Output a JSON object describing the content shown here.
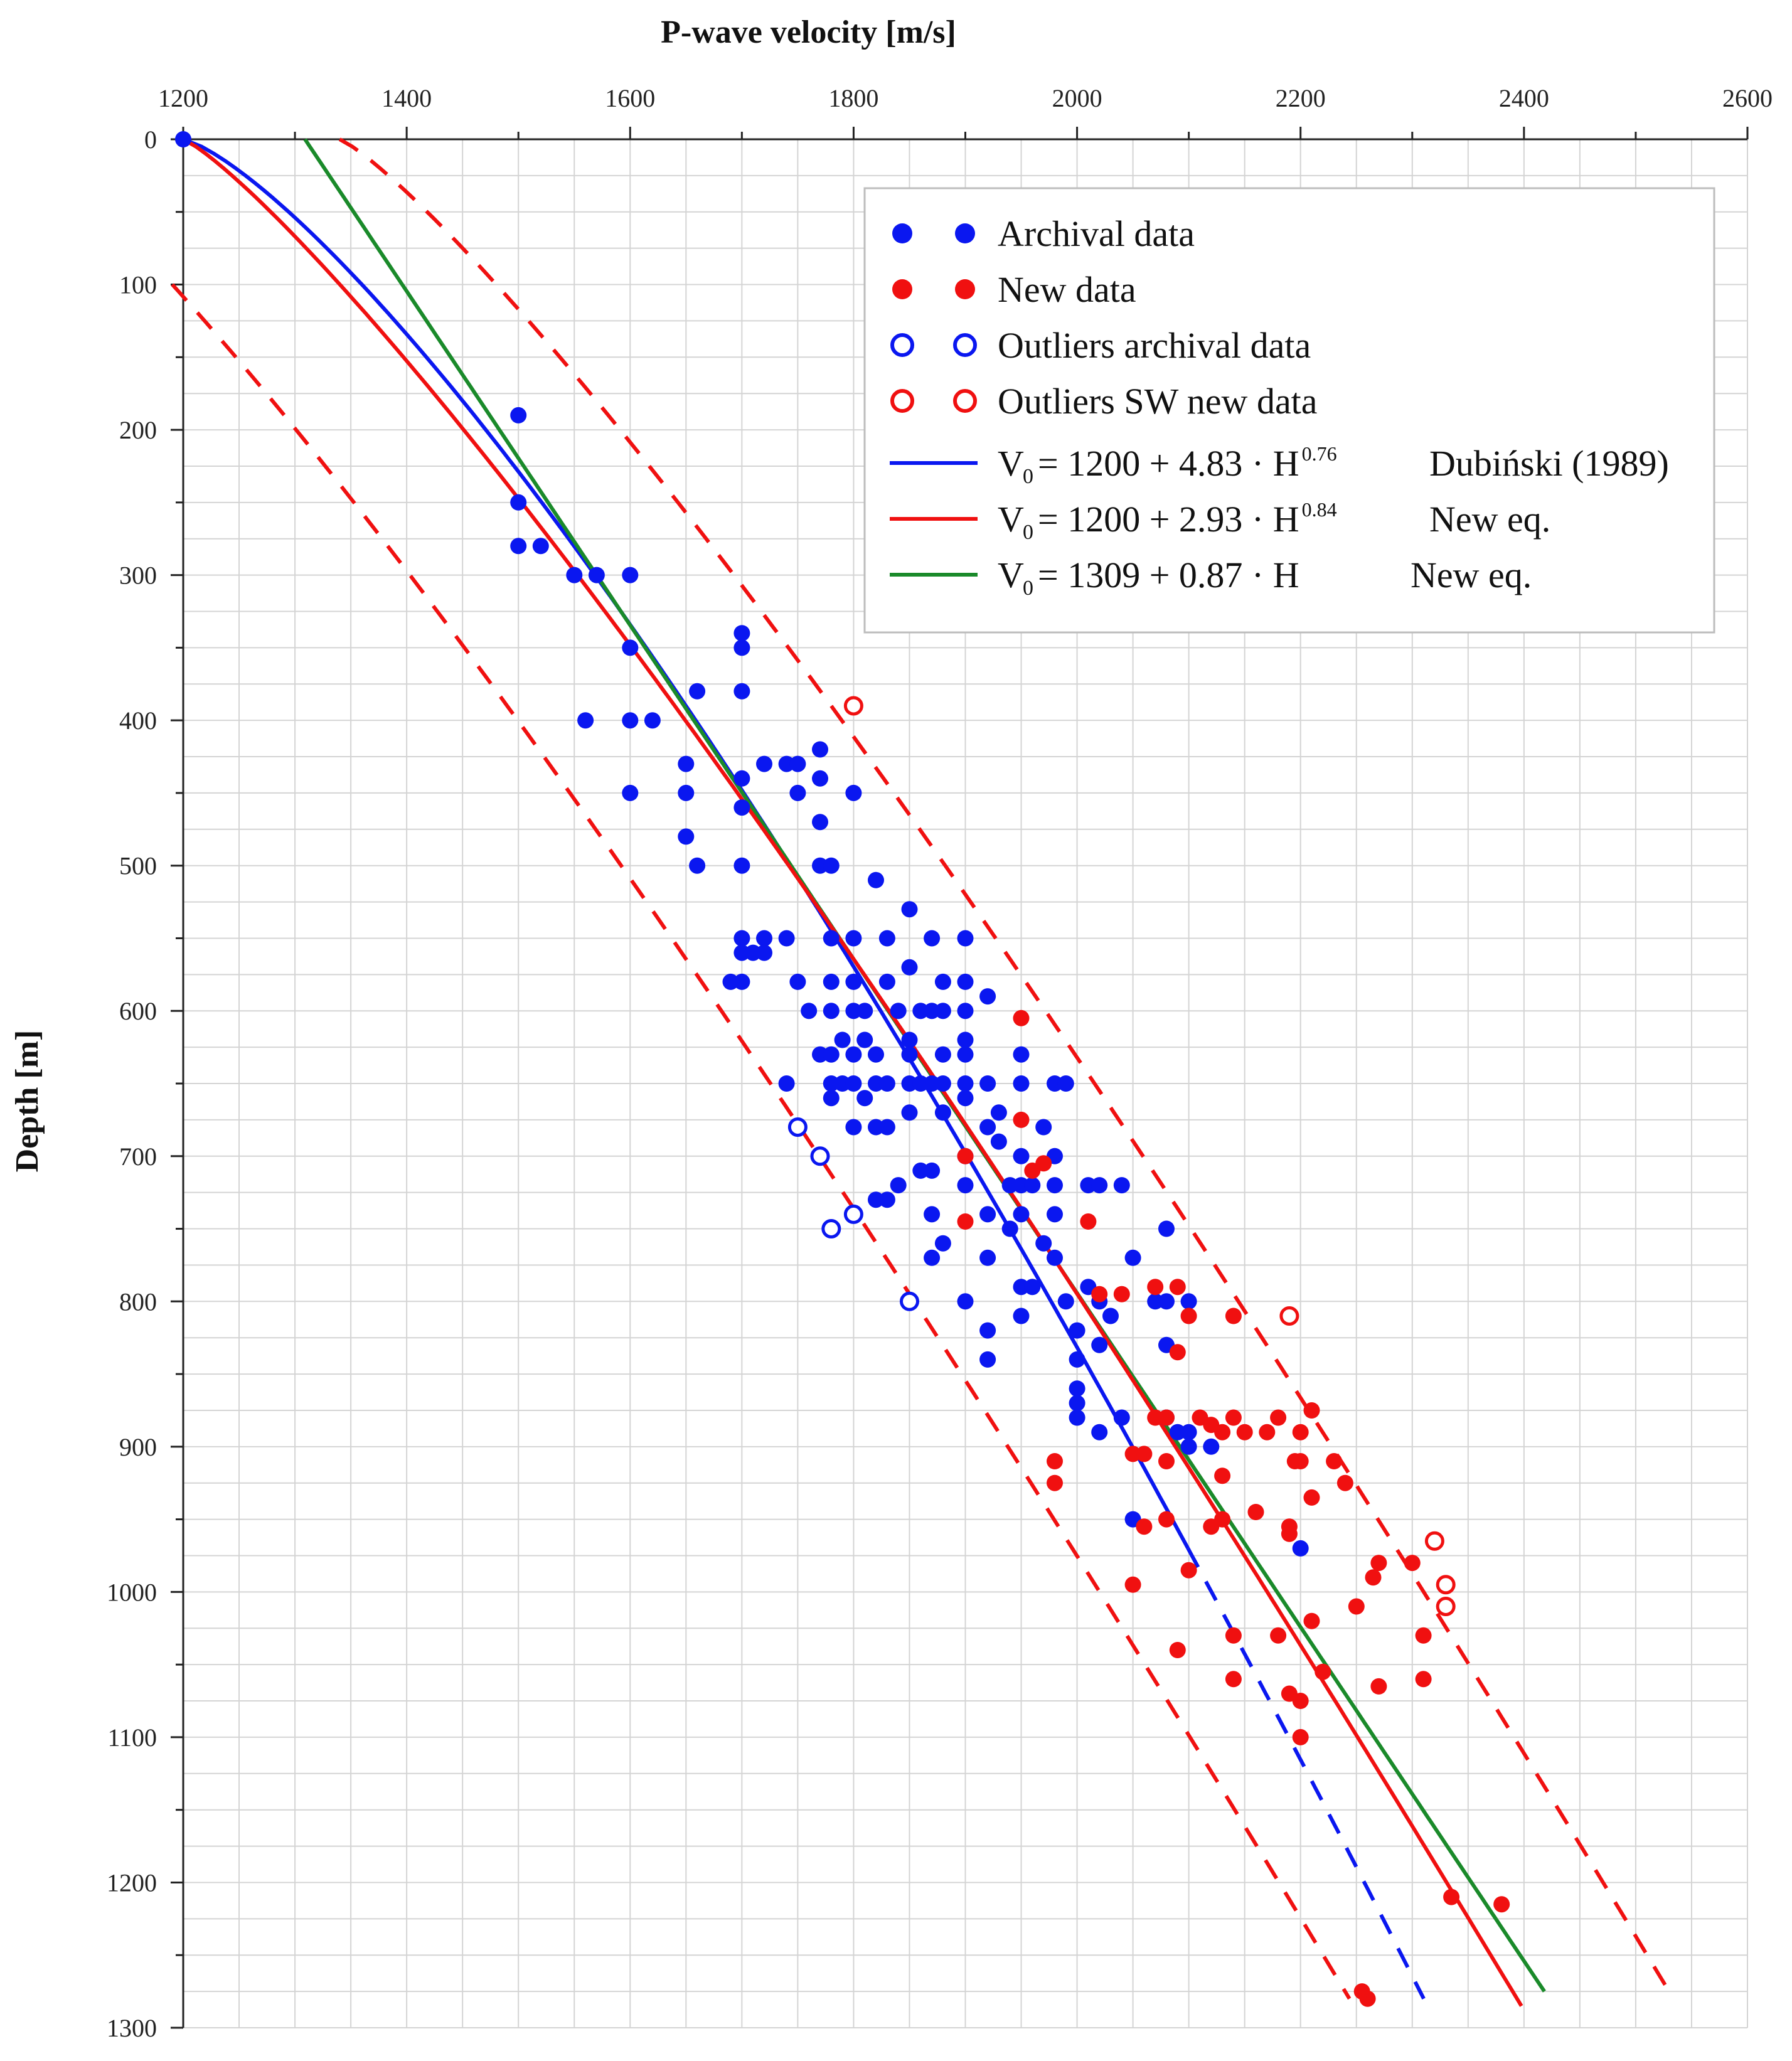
{
  "chart_data": {
    "type": "scatter",
    "title": "P-wave velocity [m/s]",
    "xlabel": "P-wave velocity [m/s]",
    "ylabel": "Depth [m]",
    "xlim": [
      1200,
      2600
    ],
    "ylim": [
      0,
      1300
    ],
    "y_inverted": true,
    "grid": true,
    "x_ticks": [
      "1200",
      "1400",
      "1600",
      "1800",
      "2000",
      "2200",
      "2400",
      "2600"
    ],
    "y_ticks": [
      "0",
      "100",
      "200",
      "300",
      "400",
      "500",
      "600",
      "700",
      "800",
      "900",
      "1000",
      "1100",
      "1200",
      "1300"
    ],
    "legend_position": "top-right",
    "colors": {
      "archival": "#0a17f0",
      "new": "#f01010",
      "linear": "#1a8a2a"
    },
    "legend": {
      "archival": "Archival data",
      "new": "New data",
      "outliers_archival": "Outliers archival data",
      "outliers_new": "Outliers SW new data",
      "eq_dubinski": {
        "lhs": "V",
        "sub": "0",
        "rhs": "= 1200 + 4.83 · H",
        "sup": "0.76",
        "note": "Dubiński (1989)"
      },
      "eq_new_power": {
        "lhs": "V",
        "sub": "0",
        "rhs": "= 1200 + 2.93 · H",
        "sup": "0.84",
        "note": "New eq."
      },
      "eq_new_linear": {
        "lhs": "V",
        "sub": "0",
        "rhs": "= 1309 + 0.87 · H",
        "sup": "",
        "note": "New eq."
      }
    },
    "curves": {
      "dubinski": {
        "a": 1200,
        "b": 4.83,
        "n": 0.76,
        "h_solid": [
          0,
          970
        ],
        "h_dashed": [
          970,
          1280
        ]
      },
      "new_power": {
        "a": 1200,
        "b": 2.93,
        "n": 0.84,
        "h_range": [
          0,
          1285
        ]
      },
      "new_linear": {
        "a": 1309,
        "b": 0.87,
        "h_range": [
          0,
          1275
        ]
      },
      "bound_upper": {
        "base": "new_power",
        "offset_v": 140,
        "h_range": [
          0,
          1275
        ]
      },
      "bound_lower": {
        "base": "new_power",
        "offset_v": -150,
        "h_range": [
          100,
          1280
        ]
      }
    },
    "series": [
      {
        "name": "Archival data",
        "marker": "filled",
        "color": "#0a17f0",
        "points": [
          [
            1200,
            0
          ],
          [
            1500,
            190
          ],
          [
            1500,
            250
          ],
          [
            1500,
            280
          ],
          [
            1520,
            280
          ],
          [
            1550,
            300
          ],
          [
            1570,
            300
          ],
          [
            1600,
            300
          ],
          [
            1600,
            350
          ],
          [
            1560,
            400
          ],
          [
            1600,
            400
          ],
          [
            1620,
            400
          ],
          [
            1600,
            450
          ],
          [
            1650,
            430
          ],
          [
            1650,
            450
          ],
          [
            1650,
            480
          ],
          [
            1660,
            500
          ],
          [
            1660,
            380
          ],
          [
            1700,
            340
          ],
          [
            1700,
            350
          ],
          [
            1700,
            380
          ],
          [
            1700,
            440
          ],
          [
            1700,
            460
          ],
          [
            1700,
            500
          ],
          [
            1740,
            430
          ],
          [
            1750,
            430
          ],
          [
            1720,
            430
          ],
          [
            1750,
            450
          ],
          [
            1770,
            420
          ],
          [
            1770,
            440
          ],
          [
            1800,
            450
          ],
          [
            1770,
            470
          ],
          [
            1770,
            500
          ],
          [
            1780,
            500
          ],
          [
            1820,
            510
          ],
          [
            1850,
            530
          ],
          [
            1700,
            550
          ],
          [
            1720,
            550
          ],
          [
            1740,
            550
          ],
          [
            1780,
            550
          ],
          [
            1800,
            550
          ],
          [
            1830,
            550
          ],
          [
            1870,
            550
          ],
          [
            1900,
            550
          ],
          [
            1700,
            560
          ],
          [
            1710,
            560
          ],
          [
            1720,
            560
          ],
          [
            1690,
            580
          ],
          [
            1700,
            580
          ],
          [
            1750,
            580
          ],
          [
            1780,
            580
          ],
          [
            1800,
            580
          ],
          [
            1830,
            580
          ],
          [
            1850,
            570
          ],
          [
            1880,
            580
          ],
          [
            1900,
            580
          ],
          [
            1760,
            600
          ],
          [
            1780,
            600
          ],
          [
            1800,
            600
          ],
          [
            1810,
            600
          ],
          [
            1840,
            600
          ],
          [
            1860,
            600
          ],
          [
            1870,
            600
          ],
          [
            1880,
            600
          ],
          [
            1900,
            600
          ],
          [
            1920,
            590
          ],
          [
            1790,
            620
          ],
          [
            1810,
            620
          ],
          [
            1850,
            620
          ],
          [
            1900,
            620
          ],
          [
            1770,
            630
          ],
          [
            1780,
            630
          ],
          [
            1800,
            630
          ],
          [
            1820,
            630
          ],
          [
            1850,
            630
          ],
          [
            1880,
            630
          ],
          [
            1900,
            630
          ],
          [
            1950,
            630
          ],
          [
            1740,
            650
          ],
          [
            1780,
            650
          ],
          [
            1790,
            650
          ],
          [
            1800,
            650
          ],
          [
            1820,
            650
          ],
          [
            1830,
            650
          ],
          [
            1850,
            650
          ],
          [
            1860,
            650
          ],
          [
            1870,
            650
          ],
          [
            1880,
            650
          ],
          [
            1900,
            650
          ],
          [
            1920,
            650
          ],
          [
            1950,
            650
          ],
          [
            1980,
            650
          ],
          [
            1990,
            650
          ],
          [
            1780,
            660
          ],
          [
            1810,
            660
          ],
          [
            1900,
            660
          ],
          [
            1800,
            680
          ],
          [
            1820,
            680
          ],
          [
            1830,
            680
          ],
          [
            1850,
            670
          ],
          [
            1880,
            670
          ],
          [
            1920,
            680
          ],
          [
            1930,
            670
          ],
          [
            1970,
            680
          ],
          [
            1900,
            700
          ],
          [
            1930,
            690
          ],
          [
            1950,
            700
          ],
          [
            1980,
            700
          ],
          [
            1860,
            710
          ],
          [
            1870,
            710
          ],
          [
            1840,
            720
          ],
          [
            1900,
            720
          ],
          [
            1940,
            720
          ],
          [
            1950,
            720
          ],
          [
            1960,
            720
          ],
          [
            1980,
            720
          ],
          [
            2010,
            720
          ],
          [
            2020,
            720
          ],
          [
            2040,
            720
          ],
          [
            1830,
            730
          ],
          [
            1820,
            730
          ],
          [
            1870,
            740
          ],
          [
            1920,
            740
          ],
          [
            1950,
            740
          ],
          [
            1980,
            740
          ],
          [
            1940,
            750
          ],
          [
            1970,
            760
          ],
          [
            1980,
            770
          ],
          [
            2050,
            770
          ],
          [
            2080,
            750
          ],
          [
            1880,
            760
          ],
          [
            1870,
            770
          ],
          [
            1920,
            770
          ],
          [
            1950,
            790
          ],
          [
            1960,
            790
          ],
          [
            2010,
            790
          ],
          [
            1900,
            800
          ],
          [
            1950,
            810
          ],
          [
            2070,
            800
          ],
          [
            2080,
            800
          ],
          [
            2100,
            800
          ],
          [
            2020,
            800
          ],
          [
            1990,
            800
          ],
          [
            2030,
            810
          ],
          [
            1920,
            820
          ],
          [
            2000,
            820
          ],
          [
            2000,
            840
          ],
          [
            2020,
            830
          ],
          [
            2080,
            830
          ],
          [
            1920,
            840
          ],
          [
            2000,
            860
          ],
          [
            2000,
            870
          ],
          [
            2000,
            880
          ],
          [
            2040,
            880
          ],
          [
            2020,
            890
          ],
          [
            2080,
            880
          ],
          [
            2090,
            890
          ],
          [
            2100,
            890
          ],
          [
            2100,
            900
          ],
          [
            2120,
            900
          ],
          [
            2050,
            950
          ],
          [
            2200,
            970
          ]
        ]
      },
      {
        "name": "New data",
        "marker": "filled",
        "color": "#f01010",
        "points": [
          [
            1950,
            605
          ],
          [
            1950,
            675
          ],
          [
            1960,
            710
          ],
          [
            1970,
            705
          ],
          [
            1900,
            700
          ],
          [
            1900,
            745
          ],
          [
            2010,
            745
          ],
          [
            2020,
            795
          ],
          [
            2040,
            795
          ],
          [
            2070,
            790
          ],
          [
            2090,
            790
          ],
          [
            2100,
            810
          ],
          [
            2090,
            835
          ],
          [
            2140,
            810
          ],
          [
            2070,
            880
          ],
          [
            2080,
            880
          ],
          [
            2110,
            880
          ],
          [
            2120,
            885
          ],
          [
            2130,
            890
          ],
          [
            2140,
            880
          ],
          [
            2150,
            890
          ],
          [
            2170,
            890
          ],
          [
            2180,
            880
          ],
          [
            2200,
            890
          ],
          [
            2210,
            875
          ],
          [
            2200,
            910
          ],
          [
            2195,
            910
          ],
          [
            2230,
            910
          ],
          [
            2240,
            925
          ],
          [
            2210,
            935
          ],
          [
            2130,
            920
          ],
          [
            2080,
            910
          ],
          [
            2060,
            905
          ],
          [
            2050,
            905
          ],
          [
            1980,
            910
          ],
          [
            1980,
            925
          ],
          [
            2060,
            955
          ],
          [
            2080,
            950
          ],
          [
            2120,
            955
          ],
          [
            2130,
            950
          ],
          [
            2160,
            945
          ],
          [
            2190,
            955
          ],
          [
            2190,
            960
          ],
          [
            2100,
            985
          ],
          [
            2050,
            995
          ],
          [
            2090,
            1040
          ],
          [
            2140,
            1030
          ],
          [
            2140,
            1060
          ],
          [
            2180,
            1030
          ],
          [
            2210,
            1020
          ],
          [
            2220,
            1055
          ],
          [
            2250,
            1010
          ],
          [
            2270,
            1065
          ],
          [
            2200,
            1075
          ],
          [
            2200,
            1100
          ],
          [
            2190,
            1070
          ],
          [
            2270,
            980
          ],
          [
            2265,
            990
          ],
          [
            2300,
            980
          ],
          [
            2310,
            1030
          ],
          [
            2310,
            1060
          ],
          [
            2335,
            1210
          ],
          [
            2380,
            1215
          ],
          [
            2255,
            1275
          ],
          [
            2260,
            1280
          ]
        ]
      },
      {
        "name": "Outliers archival data",
        "marker": "open",
        "color": "#0a17f0",
        "points": [
          [
            1750,
            680
          ],
          [
            1770,
            700
          ],
          [
            1780,
            750
          ],
          [
            1800,
            740
          ],
          [
            1850,
            800
          ]
        ]
      },
      {
        "name": "Outliers SW new data",
        "marker": "open",
        "color": "#f01010",
        "points": [
          [
            1800,
            390
          ],
          [
            2190,
            810
          ],
          [
            2320,
            965
          ],
          [
            2330,
            995
          ],
          [
            2330,
            1010
          ]
        ]
      }
    ]
  }
}
